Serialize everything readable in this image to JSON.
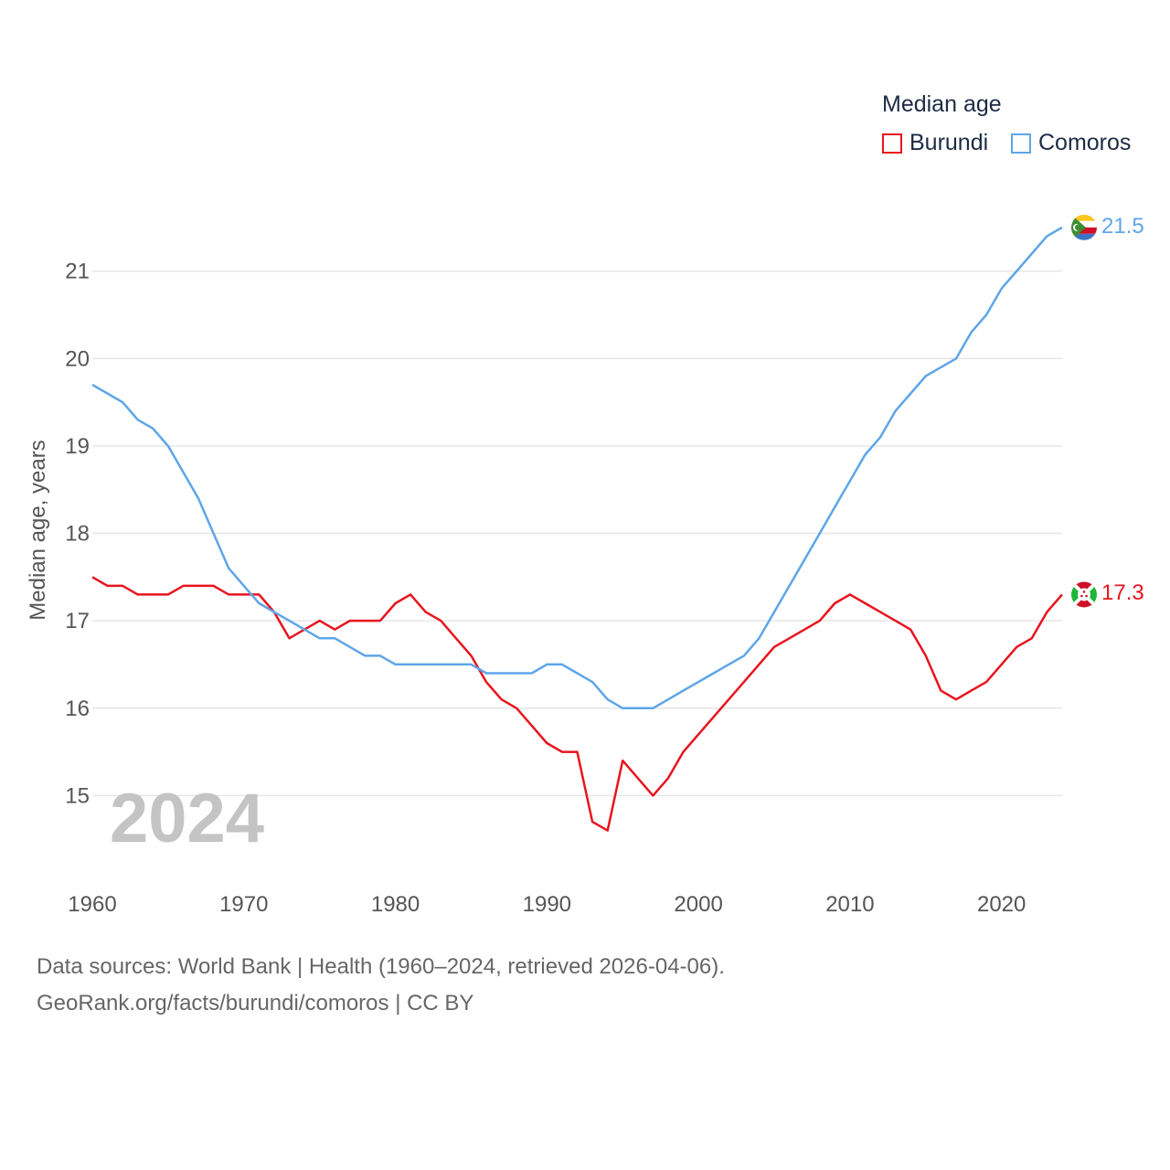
{
  "legend": {
    "title": "Median age",
    "items": [
      {
        "name": "Burundi",
        "color": "#e8141e"
      },
      {
        "name": "Comoros",
        "color": "#5ea5e8"
      }
    ]
  },
  "watermark_year": "2024",
  "footer": {
    "source": "Data sources: World Bank | Health (1960–2024, retrieved 2026-04-06).",
    "credit": "GeoRank.org/facts/burundi/comoros | CC BY"
  },
  "end_labels": {
    "burundi": "17.3",
    "comoros": "21.5"
  },
  "chart_data": {
    "type": "line",
    "title": "Median age",
    "xlabel": "",
    "ylabel": "Median age, years",
    "xlim": [
      1960,
      2024
    ],
    "ylim": [
      14.0,
      22.0
    ],
    "x_ticks": [
      1960,
      1970,
      1980,
      1990,
      2000,
      2010,
      2020
    ],
    "y_ticks": [
      15,
      16,
      17,
      18,
      19,
      20,
      21
    ],
    "x": [
      1960,
      1961,
      1962,
      1963,
      1964,
      1965,
      1966,
      1967,
      1968,
      1969,
      1970,
      1971,
      1972,
      1973,
      1974,
      1975,
      1976,
      1977,
      1978,
      1979,
      1980,
      1981,
      1982,
      1983,
      1984,
      1985,
      1986,
      1987,
      1988,
      1989,
      1990,
      1991,
      1992,
      1993,
      1994,
      1995,
      1996,
      1997,
      1998,
      1999,
      2000,
      2001,
      2002,
      2003,
      2004,
      2005,
      2006,
      2007,
      2008,
      2009,
      2010,
      2011,
      2012,
      2013,
      2014,
      2015,
      2016,
      2017,
      2018,
      2019,
      2020,
      2021,
      2022,
      2023,
      2024
    ],
    "series": [
      {
        "name": "Burundi",
        "color": "#e8141e",
        "values": [
          17.5,
          17.4,
          17.4,
          17.3,
          17.3,
          17.3,
          17.4,
          17.4,
          17.4,
          17.3,
          17.3,
          17.3,
          17.1,
          16.8,
          16.9,
          17.0,
          16.9,
          17.0,
          17.0,
          17.0,
          17.2,
          17.3,
          17.1,
          17.0,
          16.8,
          16.6,
          16.3,
          16.1,
          16.0,
          15.8,
          15.6,
          15.5,
          15.5,
          14.7,
          14.6,
          15.4,
          15.2,
          15.0,
          15.2,
          15.5,
          15.7,
          15.9,
          16.1,
          16.3,
          16.5,
          16.7,
          16.8,
          16.9,
          17.0,
          17.2,
          17.3,
          17.2,
          17.1,
          17.0,
          16.9,
          16.6,
          16.2,
          16.1,
          16.2,
          16.3,
          16.5,
          16.7,
          16.8,
          17.1,
          17.3
        ]
      },
      {
        "name": "Comoros",
        "color": "#5ea5e8",
        "values": [
          19.7,
          19.6,
          19.5,
          19.3,
          19.2,
          19.0,
          18.7,
          18.4,
          18.0,
          17.6,
          17.4,
          17.2,
          17.1,
          17.0,
          16.9,
          16.8,
          16.8,
          16.7,
          16.6,
          16.6,
          16.5,
          16.5,
          16.5,
          16.5,
          16.5,
          16.5,
          16.4,
          16.4,
          16.4,
          16.4,
          16.5,
          16.5,
          16.4,
          16.3,
          16.1,
          16.0,
          16.0,
          16.0,
          16.1,
          16.2,
          16.3,
          16.4,
          16.5,
          16.6,
          16.8,
          17.1,
          17.4,
          17.7,
          18.0,
          18.3,
          18.6,
          18.9,
          19.1,
          19.4,
          19.6,
          19.8,
          19.9,
          20.0,
          20.3,
          20.5,
          20.8,
          21.0,
          21.2,
          21.4,
          21.5
        ]
      }
    ]
  }
}
